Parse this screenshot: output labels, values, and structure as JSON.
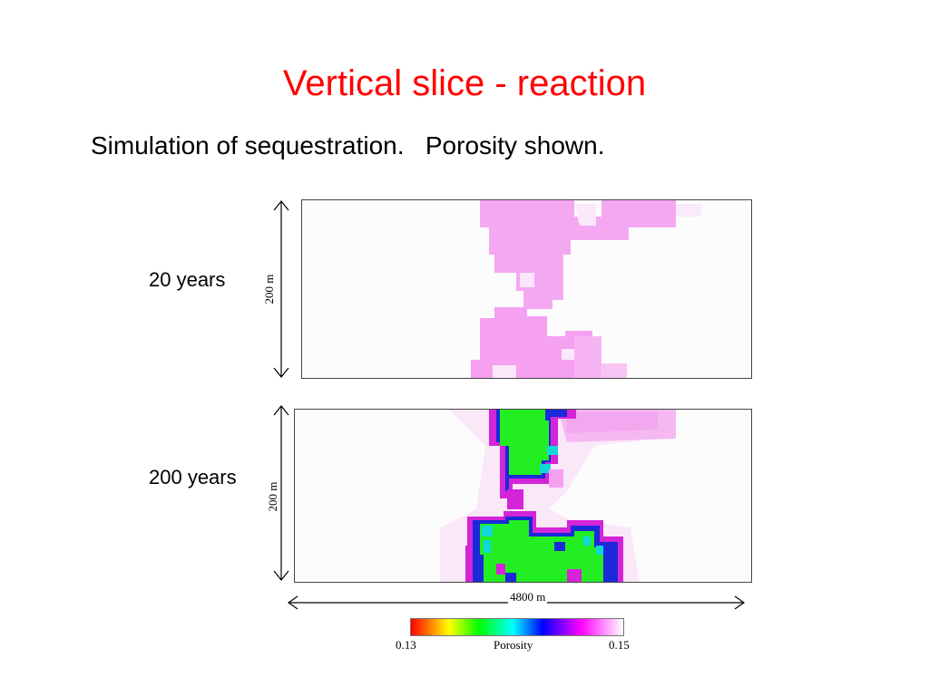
{
  "slide": {
    "title": "Vertical slice - reaction",
    "subtitle": "Simulation of sequestration.   Porosity shown."
  },
  "panels": [
    {
      "time_label": "20 years",
      "height_label": "200 m"
    },
    {
      "time_label": "200 years",
      "height_label": "200 m"
    }
  ],
  "width_label": "4800 m",
  "colorbar": {
    "min_label": "0.13",
    "max_label": "0.15",
    "title": "Porosity",
    "colors": [
      "#ff0000",
      "#ffff00",
      "#00ff00",
      "#00ffff",
      "#0000ff",
      "#ff00ff",
      "#ffffff"
    ]
  },
  "colors": {
    "title": "#ff0000",
    "pink": "#f5a0f0",
    "light_pink": "#f8c8f4",
    "green": "#22ee22",
    "blue": "#1a2ad8",
    "magenta": "#d020d8",
    "cyan": "#10d8d8"
  }
}
